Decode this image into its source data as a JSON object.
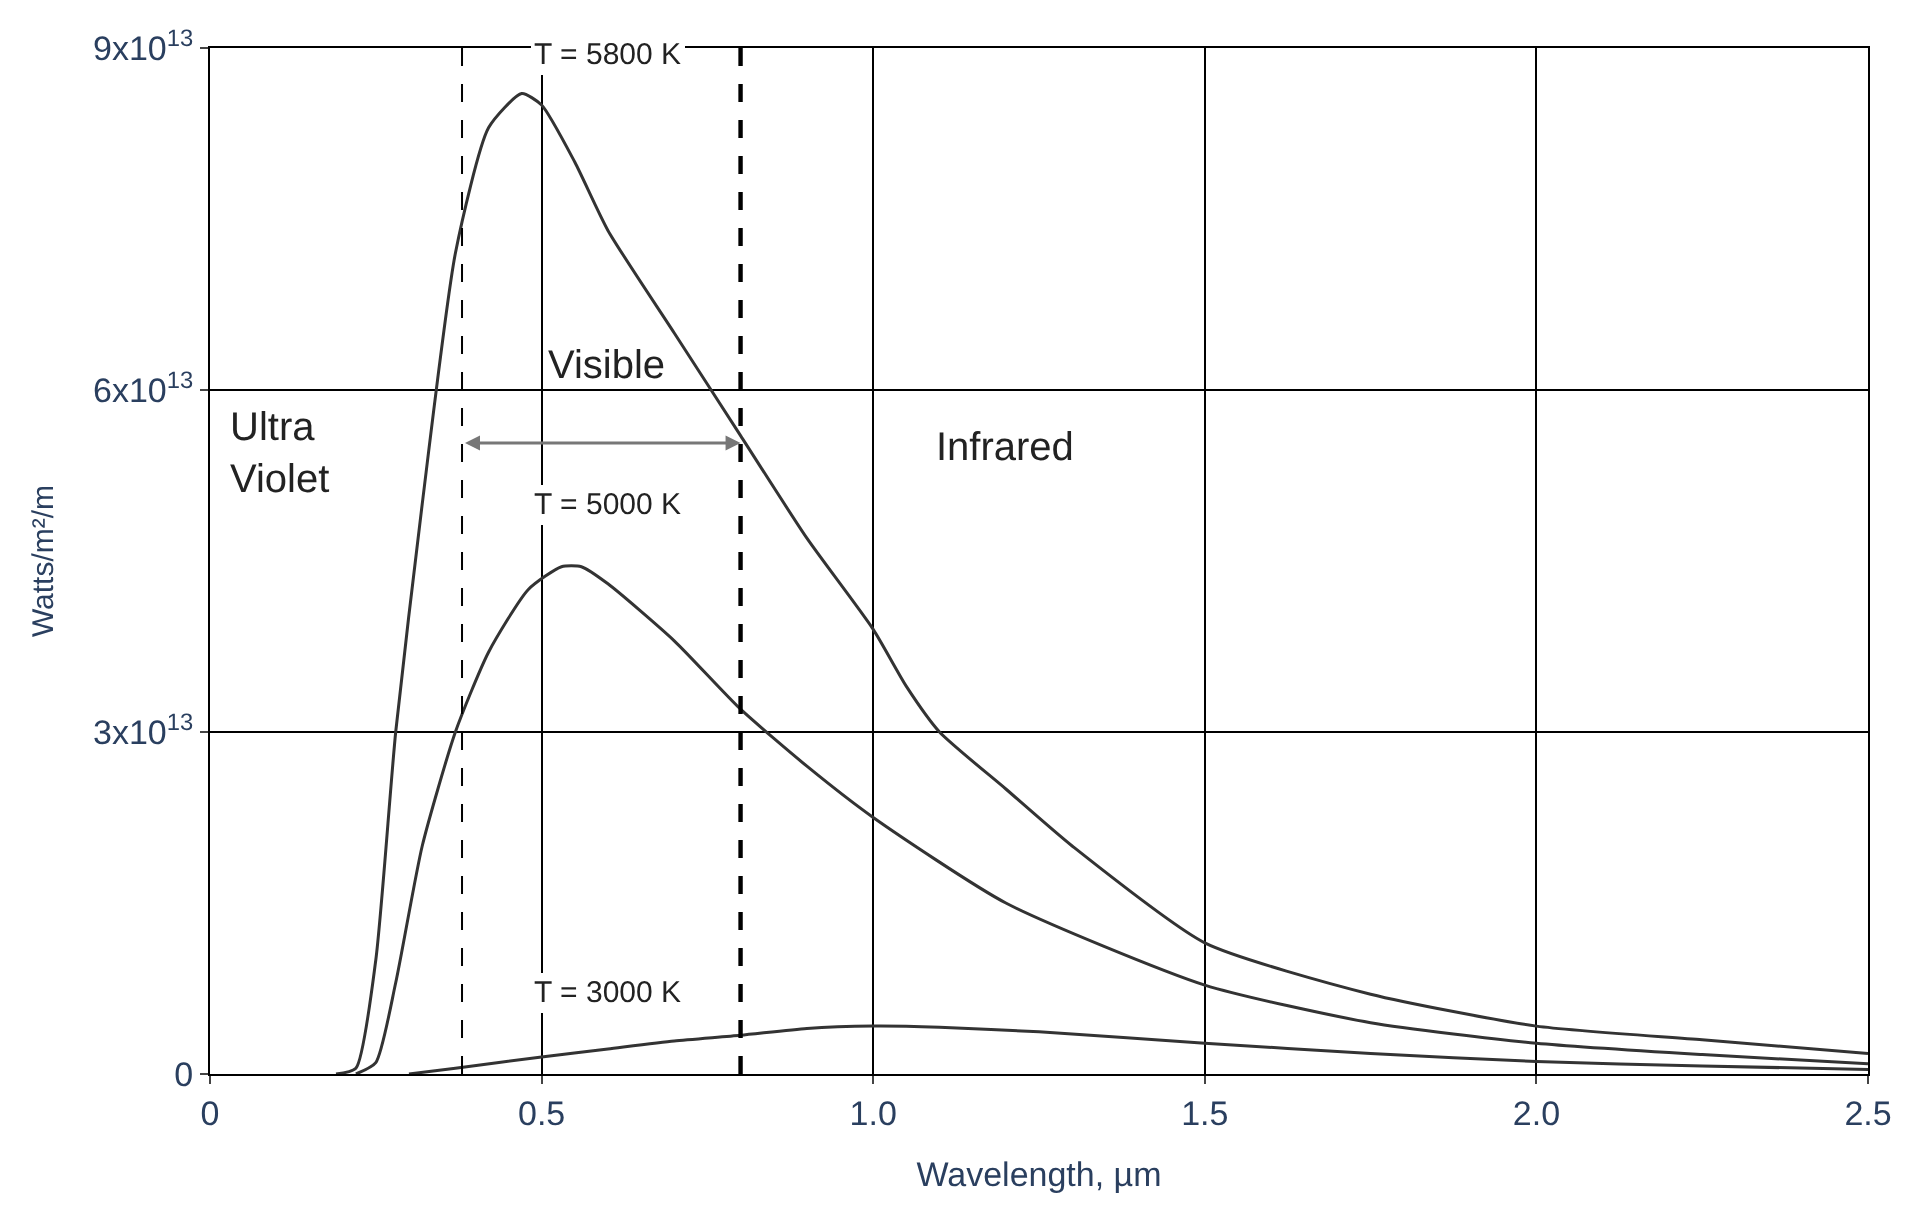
{
  "chart_data": {
    "type": "line",
    "xlabel": "Wavelength, µm",
    "ylabel": "Watts/m²/m",
    "xlim": [
      0,
      2.5
    ],
    "ylim": [
      0,
      90000000000000.0
    ],
    "xticks": [
      0,
      0.5,
      {
        "value": 1,
        "label": "1.0"
      },
      1.5,
      {
        "value": 2,
        "label": "2.0"
      },
      2.5
    ],
    "yticks": [
      0,
      {
        "value": 30000000000000.0,
        "label": "3x10$^{13}$"
      },
      {
        "value": 60000000000000.0,
        "label": "6x10$^{13}$"
      },
      {
        "value": 90000000000000.0,
        "label": "9x10$^{13}$"
      }
    ],
    "grid": true,
    "marker": "none",
    "line_style": "solid",
    "series": [
      {
        "color": "#333333",
        "x": [
          0.19,
          0.22,
          0.25,
          0.28,
          0.32,
          0.37,
          0.42,
          0.47,
          0.5,
          0.55,
          0.6,
          0.7,
          0.8,
          0.9,
          1.0,
          1.05,
          1.1,
          1.2,
          1.3,
          1.5,
          1.75,
          2.0,
          2.25,
          2.5
        ],
        "values": [
          0,
          500000000000.0,
          10000000000000.0,
          30000000000000.0,
          50000000000000.0,
          72000000000000.0,
          83000000000000.0,
          86000000000000.0,
          85000000000000.0,
          80000000000000.0,
          74000000000000.0,
          65000000000000.0,
          56000000000000.0,
          47000000000000.0,
          39000000000000.0,
          34000000000000.0,
          30000000000000.0,
          25000000000000.0,
          20000000000000.0,
          11500000000000.0,
          7000000000000.0,
          4200000000000.0,
          3000000000000.0,
          1800000000000.0
        ]
      },
      {
        "color": "#333333",
        "x": [
          0.22,
          0.25,
          0.28,
          0.32,
          0.37,
          0.42,
          0.48,
          0.53,
          0.56,
          0.6,
          0.7,
          0.8,
          0.9,
          1.0,
          1.2,
          1.5,
          1.75,
          2.0,
          2.25,
          2.5
        ],
        "values": [
          0,
          1000000000000.0,
          8000000000000.0,
          20000000000000.0,
          30000000000000.0,
          37000000000000.0,
          42500000000000.0,
          44500000000000.0,
          44500000000000.0,
          43000000000000.0,
          38000000000000.0,
          32000000000000.0,
          27000000000000.0,
          22500000000000.0,
          15000000000000.0,
          7800000000000.0,
          4500000000000.0,
          2700000000000.0,
          1700000000000.0,
          900000000000.0
        ]
      },
      {
        "color": "#333333",
        "x": [
          0.3,
          0.37,
          0.5,
          0.6,
          0.7,
          0.8,
          0.9,
          1.0,
          1.1,
          1.25,
          1.5,
          1.75,
          2.0,
          2.25,
          2.5
        ],
        "values": [
          0,
          500000000000.0,
          1500000000000.0,
          2200000000000.0,
          2900000000000.0,
          3400000000000.0,
          4000000000000.0,
          4200000000000.0,
          4100000000000.0,
          3700000000000.0,
          2700000000000.0,
          1800000000000.0,
          1100000000000.0,
          700000000000.0,
          400000000000.0
        ]
      }
    ],
    "ref_lines": [
      {
        "axis": "x",
        "value": 0.38,
        "color": "#000000",
        "line_style": "dashed"
      },
      {
        "axis": "x",
        "value": 0.8,
        "color": "#000000",
        "line_style": "dashed"
      }
    ],
    "annotations": [
      "T = 5800 K",
      "Ultra\nViolet",
      "Visible",
      "Infrared",
      "T = 5000 K",
      "T = 3000 K"
    ]
  }
}
